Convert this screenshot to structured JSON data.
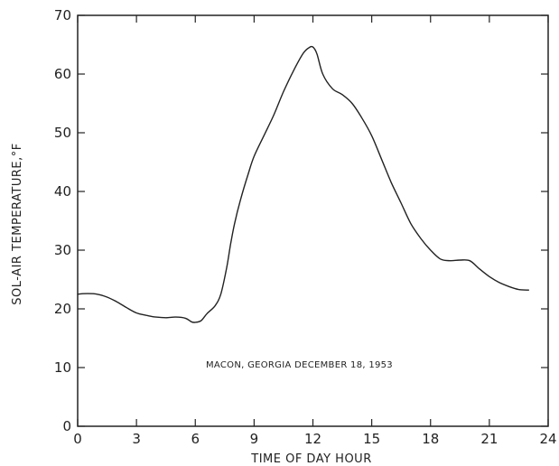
{
  "chart_data": {
    "type": "line",
    "xlabel": "TIME OF DAY  HOUR",
    "ylabel": "SOL-AIR TEMPERATURE,°F",
    "annotation": "MACON, GEORGIA  DECEMBER 18, 1953",
    "xlim": [
      0,
      24
    ],
    "ylim": [
      0,
      70
    ],
    "xticks": [
      "0",
      "3",
      "6",
      "9",
      "12",
      "15",
      "18",
      "21",
      "24"
    ],
    "yticks": [
      "0",
      "10",
      "20",
      "30",
      "40",
      "50",
      "60",
      "70"
    ],
    "grid": false,
    "series": [
      {
        "x": [
          0,
          0.5,
          1,
          1.5,
          2,
          2.5,
          3,
          3.5,
          4,
          4.5,
          5,
          5.5,
          5.8,
          6,
          6.3,
          6.6,
          7,
          7.3,
          7.6,
          7.8,
          8,
          8.3,
          8.7,
          9,
          9.5,
          10,
          10.5,
          11,
          11.5,
          11.8,
          12,
          12.2,
          12.5,
          13,
          13.5,
          14,
          14.5,
          15,
          15.5,
          16,
          16.5,
          17,
          17.5,
          18,
          18.5,
          19,
          19.5,
          20,
          20.5,
          21,
          21.5,
          22,
          22.5,
          23
        ],
        "y": [
          22.5,
          22.6,
          22.5,
          22.0,
          21.2,
          20.2,
          19.3,
          18.9,
          18.6,
          18.5,
          18.6,
          18.4,
          17.8,
          17.7,
          18.0,
          19.2,
          20.5,
          22.5,
          27.0,
          31.0,
          34.5,
          38.5,
          43.0,
          46.0,
          49.5,
          53.0,
          57.0,
          60.5,
          63.5,
          64.5,
          64.6,
          63.5,
          60.0,
          57.5,
          56.5,
          55.0,
          52.5,
          49.5,
          45.5,
          41.5,
          38.0,
          34.5,
          32.0,
          30.0,
          28.5,
          28.2,
          28.3,
          28.2,
          26.8,
          25.5,
          24.5,
          23.8,
          23.3,
          23.2
        ]
      }
    ]
  }
}
